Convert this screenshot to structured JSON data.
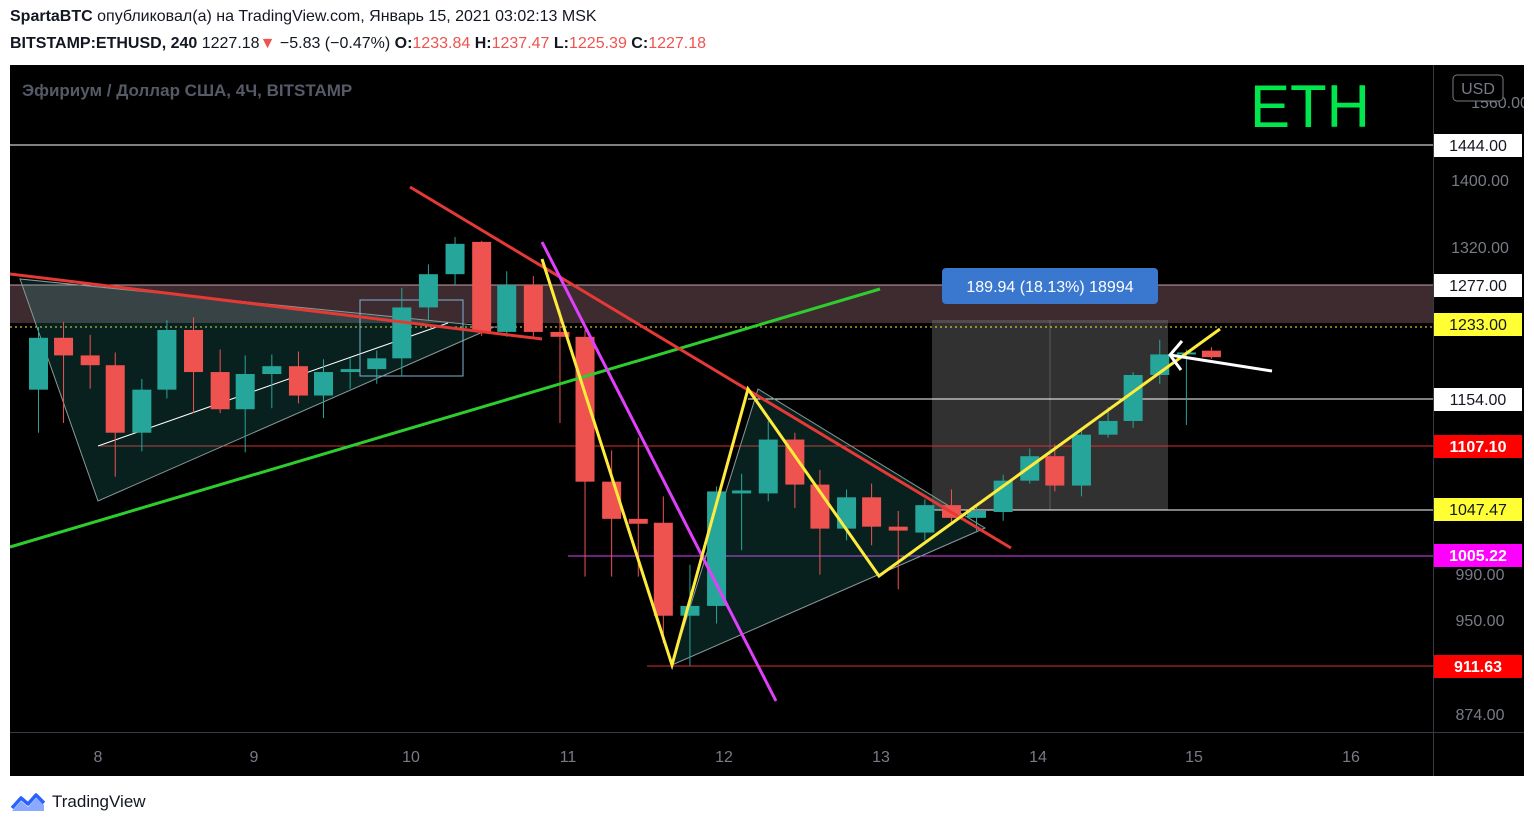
{
  "header": {
    "author": "SpartaBTC",
    "published": "опубликовал(а) на TradingView.com, Январь 15, 2021 03:02:13 MSK",
    "symbol": "BITSTAMP:ETHUSD, 240",
    "last": "1227.18",
    "change_arrow": "▼",
    "change": "−5.83 (−0.47%)",
    "o_label": "O:",
    "o_val": "1233.84",
    "h_label": "H:",
    "h_val": "1237.47",
    "l_label": "L:",
    "l_val": "1225.39",
    "c_label": "C:",
    "c_val": "1227.18"
  },
  "chart_title": "Эфириум / Доллар США, 4Ч, BITSTAMP",
  "big_label": "ETH",
  "currency_button": "USD",
  "measure_label": "189.94 (18.13%) 18994",
  "footer": {
    "brand": "TradingView"
  },
  "colors": {
    "up": "#26a69a",
    "down": "#ef5350",
    "background": "#000000",
    "yellow": "#ffeb3b",
    "green": "#2ecc2e",
    "magenta": "#e040fb",
    "eth_label": "#00e64d"
  },
  "chart_data": {
    "type": "candlestick",
    "timeframe": "4H",
    "x_tick_labels": [
      "8",
      "9",
      "10",
      "11",
      "12",
      "13",
      "14",
      "15",
      "16"
    ],
    "y_tick_labels": [
      "1560.00",
      "1400.00",
      "1320.00",
      "990.00",
      "950.00",
      "874.00"
    ],
    "y_range": [
      852,
      1500
    ],
    "price_levels": [
      {
        "label": "1444.00",
        "style": "white"
      },
      {
        "label": "1277.00",
        "style": "white"
      },
      {
        "label": "1233.00",
        "style": "yellow"
      },
      {
        "label": "1154.00",
        "style": "white"
      },
      {
        "label": "1107.10",
        "style": "red"
      },
      {
        "label": "1047.47",
        "style": "yellow"
      },
      {
        "label": "1005.22",
        "style": "magenta"
      },
      {
        "label": "911.63",
        "style": "red"
      }
    ],
    "candles": [
      {
        "t": 7.62,
        "o": 1194,
        "h": 1258,
        "l": 1150,
        "c": 1247
      },
      {
        "t": 7.78,
        "o": 1247,
        "h": 1263,
        "l": 1160,
        "c": 1229
      },
      {
        "t": 7.95,
        "o": 1229,
        "h": 1250,
        "l": 1195,
        "c": 1219
      },
      {
        "t": 8.11,
        "o": 1219,
        "h": 1232,
        "l": 1105,
        "c": 1150
      },
      {
        "t": 8.28,
        "o": 1150,
        "h": 1205,
        "l": 1131,
        "c": 1194
      },
      {
        "t": 8.44,
        "o": 1194,
        "h": 1265,
        "l": 1185,
        "c": 1255
      },
      {
        "t": 8.61,
        "o": 1255,
        "h": 1268,
        "l": 1170,
        "c": 1212
      },
      {
        "t": 8.78,
        "o": 1212,
        "h": 1235,
        "l": 1170,
        "c": 1174
      },
      {
        "t": 8.94,
        "o": 1174,
        "h": 1229,
        "l": 1130,
        "c": 1210
      },
      {
        "t": 9.11,
        "o": 1210,
        "h": 1230,
        "l": 1175,
        "c": 1218
      },
      {
        "t": 9.28,
        "o": 1218,
        "h": 1233,
        "l": 1180,
        "c": 1188
      },
      {
        "t": 9.44,
        "o": 1188,
        "h": 1225,
        "l": 1165,
        "c": 1212
      },
      {
        "t": 9.61,
        "o": 1212,
        "h": 1226,
        "l": 1195,
        "c": 1215
      },
      {
        "t": 9.78,
        "o": 1215,
        "h": 1234,
        "l": 1200,
        "c": 1226
      },
      {
        "t": 9.94,
        "o": 1226,
        "h": 1298,
        "l": 1208,
        "c": 1278
      },
      {
        "t": 10.11,
        "o": 1278,
        "h": 1322,
        "l": 1265,
        "c": 1312
      },
      {
        "t": 10.28,
        "o": 1312,
        "h": 1350,
        "l": 1301,
        "c": 1343
      },
      {
        "t": 10.45,
        "o": 1345,
        "h": 1346,
        "l": 1249,
        "c": 1253
      },
      {
        "t": 10.61,
        "o": 1253,
        "h": 1315,
        "l": 1248,
        "c": 1301
      },
      {
        "t": 10.78,
        "o": 1301,
        "h": 1310,
        "l": 1248,
        "c": 1253
      },
      {
        "t": 10.95,
        "o": 1253,
        "h": 1275,
        "l": 1160,
        "c": 1248
      },
      {
        "t": 11.11,
        "o": 1248,
        "h": 1255,
        "l": 1003,
        "c": 1100
      },
      {
        "t": 11.28,
        "o": 1100,
        "h": 1132,
        "l": 1003,
        "c": 1062
      },
      {
        "t": 11.45,
        "o": 1062,
        "h": 1145,
        "l": 1003,
        "c": 1057
      },
      {
        "t": 11.61,
        "o": 1058,
        "h": 1085,
        "l": 935,
        "c": 963
      },
      {
        "t": 11.78,
        "o": 963,
        "h": 1015,
        "l": 912,
        "c": 973
      },
      {
        "t": 11.95,
        "o": 973,
        "h": 1095,
        "l": 955,
        "c": 1090
      },
      {
        "t": 12.11,
        "o": 1088,
        "h": 1108,
        "l": 1030,
        "c": 1091
      },
      {
        "t": 12.28,
        "o": 1088,
        "h": 1162,
        "l": 1080,
        "c": 1143
      },
      {
        "t": 12.45,
        "o": 1143,
        "h": 1150,
        "l": 1073,
        "c": 1097
      },
      {
        "t": 12.61,
        "o": 1097,
        "h": 1112,
        "l": 1005,
        "c": 1052
      },
      {
        "t": 12.78,
        "o": 1052,
        "h": 1092,
        "l": 1040,
        "c": 1084
      },
      {
        "t": 12.94,
        "o": 1084,
        "h": 1098,
        "l": 1035,
        "c": 1054
      },
      {
        "t": 13.11,
        "o": 1054,
        "h": 1070,
        "l": 990,
        "c": 1050
      },
      {
        "t": 13.28,
        "o": 1048,
        "h": 1082,
        "l": 1040,
        "c": 1076
      },
      {
        "t": 13.45,
        "o": 1076,
        "h": 1092,
        "l": 1056,
        "c": 1063
      },
      {
        "t": 13.61,
        "o": 1063,
        "h": 1075,
        "l": 1048,
        "c": 1070
      },
      {
        "t": 13.78,
        "o": 1069,
        "h": 1107,
        "l": 1060,
        "c": 1101
      },
      {
        "t": 13.95,
        "o": 1101,
        "h": 1134,
        "l": 1098,
        "c": 1126
      },
      {
        "t": 14.11,
        "o": 1126,
        "h": 1138,
        "l": 1090,
        "c": 1096
      },
      {
        "t": 14.28,
        "o": 1096,
        "h": 1155,
        "l": 1085,
        "c": 1148
      },
      {
        "t": 14.45,
        "o": 1148,
        "h": 1176,
        "l": 1145,
        "c": 1162
      },
      {
        "t": 14.61,
        "o": 1162,
        "h": 1212,
        "l": 1155,
        "c": 1209
      },
      {
        "t": 14.78,
        "o": 1209,
        "h": 1245,
        "l": 1200,
        "c": 1230
      },
      {
        "t": 14.95,
        "o": 1230,
        "h": 1235,
        "l": 1158,
        "c": 1232
      },
      {
        "t": 15.11,
        "o": 1233.84,
        "h": 1237.47,
        "l": 1225.39,
        "c": 1227.18
      }
    ]
  }
}
